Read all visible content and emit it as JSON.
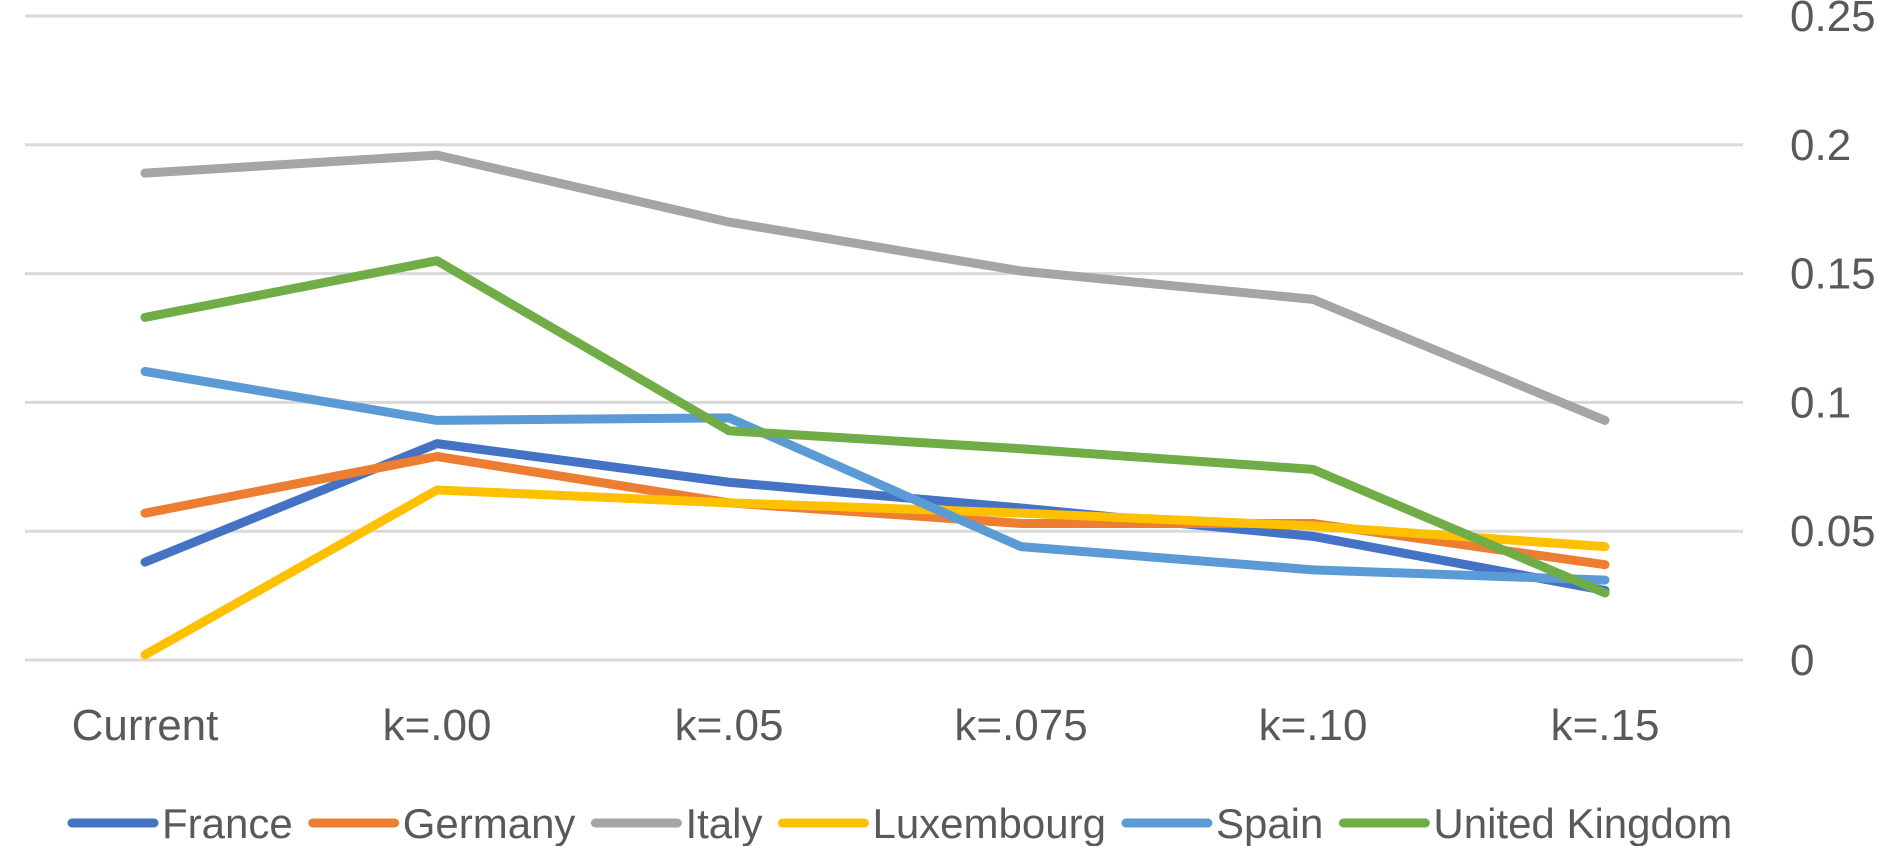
{
  "chart_data": {
    "type": "line",
    "categories": [
      "Current",
      "k=.00",
      "k=.05",
      "k=.075",
      "k=.10",
      "k=.15"
    ],
    "ylim": [
      0,
      0.25
    ],
    "yticks": [
      "0",
      "0.05",
      "0.1",
      "0.15",
      "0.2",
      "0.25"
    ],
    "ytick_values": [
      0,
      0.05,
      0.1,
      0.15,
      0.2,
      0.25
    ],
    "y_axis_side": "right",
    "grid": true,
    "legend_position": "bottom",
    "series": [
      {
        "name": "France",
        "color": "#4472c4",
        "values": [
          0.038,
          0.084,
          0.069,
          0.059,
          0.048,
          0.027
        ]
      },
      {
        "name": "Germany",
        "color": "#ed7d31",
        "values": [
          0.057,
          0.079,
          0.061,
          0.053,
          0.053,
          0.037
        ]
      },
      {
        "name": "Italy",
        "color": "#a5a5a5",
        "values": [
          0.189,
          0.196,
          0.17,
          0.151,
          0.14,
          0.093
        ]
      },
      {
        "name": "Luxembourg",
        "color": "#ffc000",
        "values": [
          0.002,
          0.066,
          0.061,
          0.057,
          0.052,
          0.044
        ]
      },
      {
        "name": "Spain",
        "color": "#5b9bd5",
        "values": [
          0.112,
          0.093,
          0.094,
          0.044,
          0.035,
          0.031
        ]
      },
      {
        "name": "United Kingdom",
        "color": "#70ad47",
        "values": [
          0.133,
          0.155,
          0.089,
          0.082,
          0.074,
          0.026
        ]
      }
    ]
  }
}
